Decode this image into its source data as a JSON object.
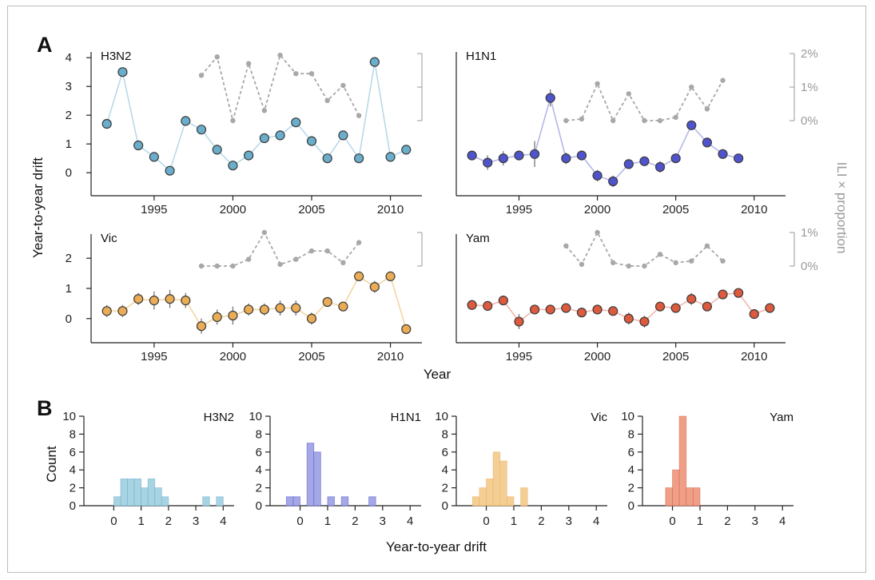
{
  "figure": {
    "panel_a_letter": "A",
    "panel_b_letter": "B",
    "a_ylabel": "Year-to-year drift",
    "a_xlabel": "Year",
    "a_right_label": "ILI × proportion",
    "b_ylabel": "Count",
    "b_xlabel": "Year-to-year drift"
  },
  "colors": {
    "H3N2": {
      "line": "#b9d9ea",
      "fill": "#6aaecb",
      "hist": "#a8d3e2"
    },
    "H1N1": {
      "line": "#b4b7e8",
      "fill": "#5054cc",
      "hist": "#a5a8e6"
    },
    "Vic": {
      "line": "#f2d6a3",
      "fill": "#eaad55",
      "hist": "#f4cf95"
    },
    "Yam": {
      "line": "#f1b7ab",
      "fill": "#dc5a3e",
      "hist": "#ef9f88"
    },
    "ili": "#a8a8a8",
    "axis": "#222222"
  },
  "chart_data": [
    {
      "type": "line",
      "panel": "A",
      "title": "H3N2",
      "xlim": [
        1991,
        2012
      ],
      "xticks": [
        1995,
        2000,
        2005,
        2010
      ],
      "ylim": [
        -0.8,
        4.2
      ],
      "yticks": [
        0,
        1,
        2,
        3,
        4
      ],
      "show_y_ticks": true,
      "points": [
        [
          1992,
          1.7,
          0.08
        ],
        [
          1993,
          3.5,
          0.1
        ],
        [
          1994,
          0.95,
          0.08
        ],
        [
          1995,
          0.55,
          0.08
        ],
        [
          1996,
          0.07,
          0.08
        ],
        [
          1997,
          1.8,
          0.1
        ],
        [
          1998,
          1.5,
          0.15
        ],
        [
          1999,
          0.8,
          0.15
        ],
        [
          2000,
          0.25,
          0.1
        ],
        [
          2001,
          0.6,
          0.12
        ],
        [
          2002,
          1.2,
          0.15
        ],
        [
          2003,
          1.3,
          0.1
        ],
        [
          2004,
          1.75,
          0.1
        ],
        [
          2005,
          1.1,
          0.1
        ],
        [
          2006,
          0.5,
          0.1
        ],
        [
          2007,
          1.3,
          0.15
        ],
        [
          2008,
          0.5,
          0.15
        ],
        [
          2009,
          3.85,
          0.1
        ],
        [
          2010,
          0.55,
          0.08
        ],
        [
          2011,
          0.8,
          0.15
        ]
      ],
      "ili": {
        "ticks": [
          "0%",
          "1%",
          "2%"
        ],
        "show_labels": false,
        "points": [
          [
            1998,
            1.35
          ],
          [
            1999,
            1.9
          ],
          [
            2000,
            0.0
          ],
          [
            2001,
            1.7
          ],
          [
            2002,
            0.3
          ],
          [
            2003,
            1.95
          ],
          [
            2004,
            1.4
          ],
          [
            2005,
            1.4
          ],
          [
            2006,
            0.6
          ],
          [
            2007,
            1.05
          ],
          [
            2008,
            0.15
          ]
        ]
      }
    },
    {
      "type": "line",
      "panel": "A",
      "title": "H1N1",
      "xlim": [
        1991,
        2012
      ],
      "xticks": [
        1995,
        2000,
        2005,
        2010
      ],
      "ylim": [
        -0.8,
        4.2
      ],
      "yticks": [
        0,
        1,
        2,
        3,
        4
      ],
      "show_y_ticks": false,
      "points": [
        [
          1992,
          0.6,
          0.15
        ],
        [
          1993,
          0.35,
          0.25
        ],
        [
          1994,
          0.5,
          0.25
        ],
        [
          1995,
          0.6,
          0.15
        ],
        [
          1996,
          0.65,
          0.45
        ],
        [
          1997,
          2.6,
          0.3
        ],
        [
          1998,
          0.5,
          0.2
        ],
        [
          1999,
          0.6,
          0.15
        ],
        [
          2000,
          -0.1,
          0.2
        ],
        [
          2001,
          -0.3,
          0.2
        ],
        [
          2002,
          0.3,
          0.15
        ],
        [
          2003,
          0.4,
          0.15
        ],
        [
          2004,
          0.2,
          0.2
        ],
        [
          2005,
          0.5,
          0.1
        ],
        [
          2006,
          1.65,
          0.15
        ],
        [
          2007,
          1.05,
          0.15
        ],
        [
          2008,
          0.65,
          0.1
        ],
        [
          2009,
          0.5,
          0.15
        ]
      ],
      "ili": {
        "ticks": [
          "0%",
          "1%",
          "2%"
        ],
        "show_labels": true,
        "points": [
          [
            1998,
            0.0
          ],
          [
            1999,
            0.05
          ],
          [
            2000,
            1.1
          ],
          [
            2001,
            0.0
          ],
          [
            2002,
            0.8
          ],
          [
            2003,
            0.0
          ],
          [
            2004,
            0.0
          ],
          [
            2005,
            0.1
          ],
          [
            2006,
            1.0
          ],
          [
            2007,
            0.35
          ],
          [
            2008,
            1.2
          ]
        ]
      }
    },
    {
      "type": "line",
      "panel": "A",
      "title": "Vic",
      "xlim": [
        1991,
        2012
      ],
      "xticks": [
        1995,
        2000,
        2005,
        2010
      ],
      "ylim": [
        -0.8,
        2.8
      ],
      "yticks": [
        0,
        1,
        2
      ],
      "show_y_ticks": true,
      "points": [
        [
          1992,
          0.25,
          0.2
        ],
        [
          1993,
          0.25,
          0.2
        ],
        [
          1994,
          0.65,
          0.2
        ],
        [
          1995,
          0.6,
          0.3
        ],
        [
          1996,
          0.65,
          0.3
        ],
        [
          1997,
          0.6,
          0.25
        ],
        [
          1998,
          -0.25,
          0.25
        ],
        [
          1999,
          0.05,
          0.25
        ],
        [
          2000,
          0.1,
          0.3
        ],
        [
          2001,
          0.3,
          0.2
        ],
        [
          2002,
          0.3,
          0.2
        ],
        [
          2003,
          0.35,
          0.25
        ],
        [
          2004,
          0.35,
          0.25
        ],
        [
          2005,
          0.0,
          0.2
        ],
        [
          2006,
          0.55,
          0.15
        ],
        [
          2007,
          0.4,
          0.15
        ],
        [
          2008,
          1.4,
          0.15
        ],
        [
          2009,
          1.05,
          0.2
        ],
        [
          2010,
          1.4,
          0.1
        ],
        [
          2011,
          -0.35,
          0.1
        ]
      ],
      "ili": {
        "ticks": [
          "0%",
          "1%"
        ],
        "show_labels": false,
        "points": [
          [
            1998,
            0.0
          ],
          [
            1999,
            0.0
          ],
          [
            2000,
            0.0
          ],
          [
            2001,
            0.2
          ],
          [
            2002,
            1.0
          ],
          [
            2003,
            0.05
          ],
          [
            2004,
            0.2
          ],
          [
            2005,
            0.45
          ],
          [
            2006,
            0.45
          ],
          [
            2007,
            0.1
          ],
          [
            2008,
            0.7
          ]
        ]
      }
    },
    {
      "type": "line",
      "panel": "A",
      "title": "Yam",
      "xlim": [
        1991,
        2012
      ],
      "xticks": [
        1995,
        2000,
        2005,
        2010
      ],
      "ylim": [
        -0.8,
        2.8
      ],
      "yticks": [
        0,
        1,
        2
      ],
      "show_y_ticks": false,
      "points": [
        [
          1992,
          0.45,
          0.15
        ],
        [
          1993,
          0.42,
          0.1
        ],
        [
          1994,
          0.6,
          0.1
        ],
        [
          1995,
          -0.1,
          0.25
        ],
        [
          1996,
          0.3,
          0.15
        ],
        [
          1997,
          0.3,
          0.15
        ],
        [
          1998,
          0.35,
          0.1
        ],
        [
          1999,
          0.2,
          0.1
        ],
        [
          2000,
          0.3,
          0.1
        ],
        [
          2001,
          0.25,
          0.15
        ],
        [
          2002,
          0.0,
          0.2
        ],
        [
          2003,
          -0.1,
          0.2
        ],
        [
          2004,
          0.4,
          0.15
        ],
        [
          2005,
          0.35,
          0.15
        ],
        [
          2006,
          0.65,
          0.2
        ],
        [
          2007,
          0.4,
          0.1
        ],
        [
          2008,
          0.8,
          0.1
        ],
        [
          2009,
          0.85,
          0.1
        ],
        [
          2010,
          0.15,
          0.1
        ],
        [
          2011,
          0.35,
          0.1
        ]
      ],
      "ili": {
        "ticks": [
          "0%",
          "1%"
        ],
        "show_labels": true,
        "points": [
          [
            1998,
            0.6
          ],
          [
            1999,
            0.05
          ],
          [
            2000,
            1.0
          ],
          [
            2001,
            0.1
          ],
          [
            2002,
            0.0
          ],
          [
            2003,
            0.0
          ],
          [
            2004,
            0.35
          ],
          [
            2005,
            0.1
          ],
          [
            2006,
            0.15
          ],
          [
            2007,
            0.6
          ],
          [
            2008,
            0.15
          ]
        ]
      }
    },
    {
      "type": "bar",
      "panel": "B",
      "title": "H3N2",
      "xlim": [
        -0.8,
        4.4
      ],
      "xticks": [
        0,
        1,
        2,
        3,
        4
      ],
      "ylim": [
        0,
        10
      ],
      "yticks": [
        0,
        2,
        4,
        6,
        8,
        10
      ],
      "bin_width": 0.25,
      "bins": [
        [
          0.0,
          1
        ],
        [
          0.25,
          3
        ],
        [
          0.5,
          3
        ],
        [
          0.75,
          3
        ],
        [
          1.0,
          2
        ],
        [
          1.25,
          3
        ],
        [
          1.5,
          2
        ],
        [
          1.75,
          1
        ],
        [
          3.25,
          1
        ],
        [
          3.75,
          1
        ]
      ]
    },
    {
      "type": "bar",
      "panel": "B",
      "title": "H1N1",
      "xlim": [
        -0.8,
        4.4
      ],
      "xticks": [
        0,
        1,
        2,
        3,
        4
      ],
      "ylim": [
        0,
        10
      ],
      "yticks": [
        0,
        2,
        4,
        6,
        8,
        10
      ],
      "bin_width": 0.25,
      "bins": [
        [
          -0.5,
          1
        ],
        [
          -0.25,
          1
        ],
        [
          0.25,
          7
        ],
        [
          0.5,
          6
        ],
        [
          1.0,
          1
        ],
        [
          1.5,
          1
        ],
        [
          2.5,
          1
        ]
      ]
    },
    {
      "type": "bar",
      "panel": "B",
      "title": "Vic",
      "xlim": [
        -0.8,
        4.4
      ],
      "xticks": [
        0,
        1,
        2,
        3,
        4
      ],
      "ylim": [
        0,
        10
      ],
      "yticks": [
        0,
        2,
        4,
        6,
        8,
        10
      ],
      "bin_width": 0.25,
      "bins": [
        [
          -0.5,
          1
        ],
        [
          -0.25,
          2
        ],
        [
          0.0,
          3
        ],
        [
          0.25,
          6
        ],
        [
          0.5,
          5
        ],
        [
          0.75,
          1
        ],
        [
          1.25,
          2
        ]
      ]
    },
    {
      "type": "bar",
      "panel": "B",
      "title": "Yam",
      "xlim": [
        -0.8,
        4.4
      ],
      "xticks": [
        0,
        1,
        2,
        3,
        4
      ],
      "ylim": [
        0,
        10
      ],
      "yticks": [
        0,
        2,
        4,
        6,
        8,
        10
      ],
      "bin_width": 0.25,
      "bins": [
        [
          -0.25,
          2
        ],
        [
          0.0,
          4
        ],
        [
          0.25,
          10
        ],
        [
          0.5,
          2
        ],
        [
          0.75,
          2
        ]
      ]
    }
  ]
}
